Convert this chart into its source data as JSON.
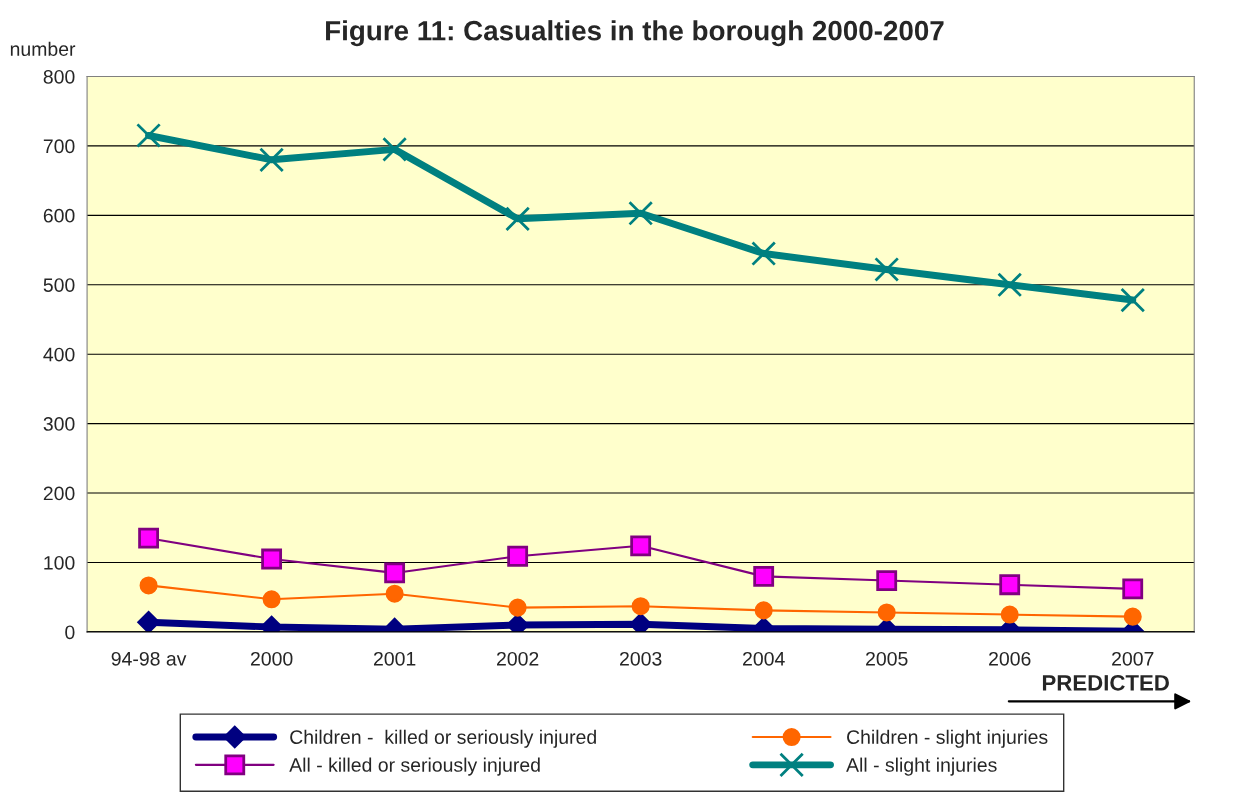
{
  "chart_data": {
    "type": "line",
    "title": "Figure 11: Casualties in the borough 2000-2007",
    "ylabel": "number",
    "categories": [
      "94-98 av",
      "2000",
      "2001",
      "2002",
      "2003",
      "2004",
      "2005",
      "2006",
      "2007"
    ],
    "series": [
      {
        "name": "Children -  killed or seriously injured",
        "color": "#000080",
        "marker": "diamond",
        "values": [
          14,
          7,
          4,
          10,
          11,
          5,
          4,
          3,
          1
        ]
      },
      {
        "name": "All - killed or seriously injured",
        "color": "#800080",
        "marker": "square",
        "values": [
          135,
          105,
          85,
          109,
          124,
          80,
          74,
          68,
          62
        ]
      },
      {
        "name": "Children - slight injuries",
        "color": "#ff6600",
        "marker": "circle",
        "values": [
          67,
          47,
          55,
          35,
          37,
          31,
          28,
          25,
          22
        ]
      },
      {
        "name": "All - slight injuries",
        "color": "#008080",
        "marker": "cross",
        "values": [
          715,
          680,
          695,
          595,
          603,
          545,
          522,
          500,
          478
        ]
      }
    ],
    "ylim": [
      0,
      800
    ],
    "yticks": [
      0,
      100,
      200,
      300,
      400,
      500,
      600,
      700,
      800
    ],
    "grid": "y",
    "legend": "bottom",
    "annotations": [
      "PREDICTED"
    ]
  }
}
